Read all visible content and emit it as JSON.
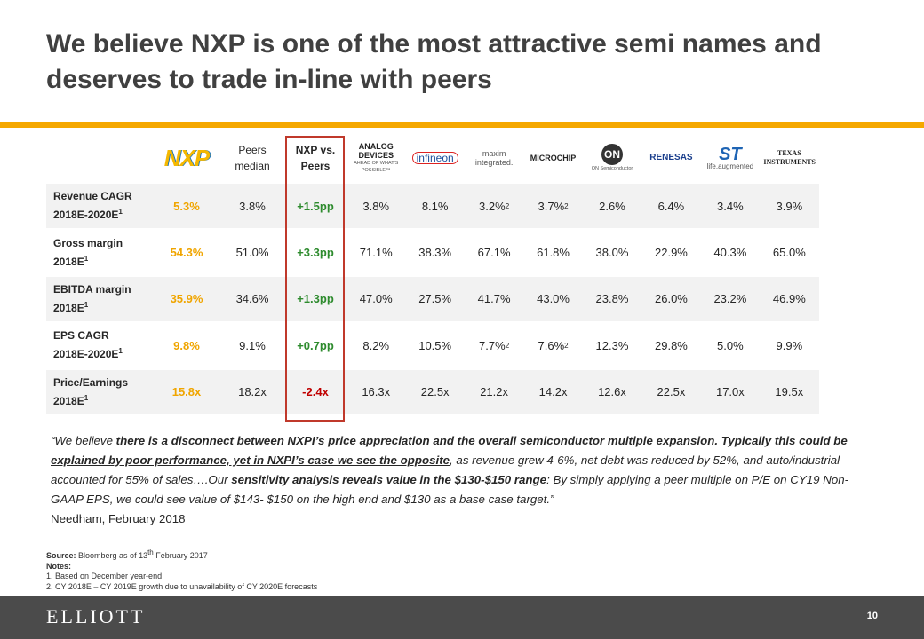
{
  "title": "We believe NXP is one of the most attractive semi names and deserves to trade in-line with peers",
  "table": {
    "headers": [
      {
        "text": "NXP"
      },
      {
        "text": "Peers median"
      },
      {
        "text": "NXP vs. Peers"
      },
      {
        "text": "ANALOG DEVICES",
        "tagline": "AHEAD OF WHAT'S POSSIBLE™"
      },
      {
        "text": "infineon"
      },
      {
        "text": "maxim integrated."
      },
      {
        "text": "MICROCHIP"
      },
      {
        "text": "ON",
        "tagline": "ON Semiconductor"
      },
      {
        "text": "RENESAS"
      },
      {
        "text": "ST",
        "tagline": "life.augmented"
      },
      {
        "text": "TEXAS INSTRUMENTS"
      }
    ],
    "rows": [
      {
        "label": [
          "Revenue CAGR",
          "2018E-2020E"
        ],
        "note": "1",
        "cells": [
          "5.3%",
          "3.8%",
          "+1.5pp",
          "3.8%",
          "8.1%",
          {
            "text": "3.2%",
            "note": "2"
          },
          {
            "text": "3.7%",
            "note": "2"
          },
          "2.6%",
          "6.4%",
          "3.4%",
          "3.9%"
        ]
      },
      {
        "label": [
          "Gross margin",
          "2018E"
        ],
        "note": "1",
        "cells": [
          "54.3%",
          "51.0%",
          "+3.3pp",
          "71.1%",
          "38.3%",
          "67.1%",
          "61.8%",
          "38.0%",
          "22.9%",
          "40.3%",
          "65.0%"
        ]
      },
      {
        "label": [
          "EBITDA margin",
          "2018E"
        ],
        "note": "1",
        "cells": [
          "35.9%",
          "34.6%",
          "+1.3pp",
          "47.0%",
          "27.5%",
          "41.7%",
          "43.0%",
          "23.8%",
          "26.0%",
          "23.2%",
          "46.9%"
        ]
      },
      {
        "label": [
          "EPS CAGR",
          "2018E-2020E"
        ],
        "note": "1",
        "cells": [
          "9.8%",
          "9.1%",
          "+0.7pp",
          "8.2%",
          "10.5%",
          {
            "text": "7.7%",
            "note": "2"
          },
          {
            "text": "7.6%",
            "note": "2"
          },
          "12.3%",
          "29.8%",
          "5.0%",
          "9.9%"
        ]
      },
      {
        "label": [
          "Price/Earnings",
          "2018E"
        ],
        "note": "1",
        "cells": [
          "15.8x",
          "18.2x",
          "-2.4x",
          "16.3x",
          "22.5x",
          "21.2x",
          "14.2x",
          "12.6x",
          "22.5x",
          "17.0x",
          "19.5x"
        ]
      }
    ]
  },
  "quote": [
    {
      "text": "“We believe "
    },
    {
      "text": "there is a disconnect between NXPI’s price appreciation and the overall semiconductor multiple expansion.  Typically this could be explained by poor performance, yet in NXPI’s case we see the opposite",
      "emphasis": true
    },
    {
      "text": ", as revenue grew 4-6%, net debt was reduced by 52%, and auto/industrial accounted for 55% of sales….Our "
    },
    {
      "text": "sensitivity analysis reveals value in the $130-$150 range",
      "emphasis": true
    },
    {
      "text": ": By simply applying a peer multiple on P/E on CY19 Non-GAAP EPS, we could see value of $143- $150 on the high end and $130 as a base case target.”"
    }
  ],
  "attribution": "Needham, February 2018",
  "source": {
    "label": "Source:",
    "text": "Bloomberg as of 13",
    "sup": "th",
    "rest": "February 2017"
  },
  "notes": {
    "label": "Notes:",
    "items": [
      "1. Based on December year-end",
      "2. CY 2018E – CY 2019E growth due to unavailability of CY 2020E forecasts"
    ]
  },
  "footer": {
    "brand": "ELLIOTT",
    "page": "10"
  }
}
